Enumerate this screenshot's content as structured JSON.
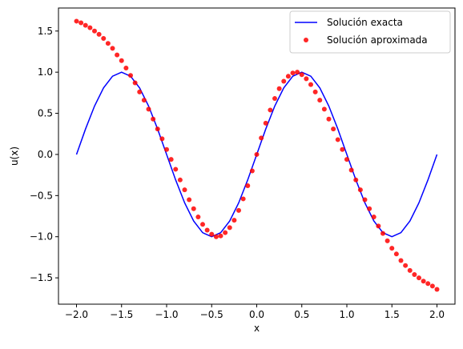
{
  "chart_data": {
    "type": "line",
    "title": "",
    "xlabel": "x",
    "ylabel": "u(x)",
    "xlim": [
      -2.2,
      2.2
    ],
    "ylim": [
      -1.82,
      1.78
    ],
    "xticks": [
      -2.0,
      -1.5,
      -1.0,
      -0.5,
      0.0,
      0.5,
      1.0,
      1.5,
      2.0
    ],
    "xtick_labels": [
      "−2.0",
      "−1.5",
      "−1.0",
      "−0.5",
      "0.0",
      "0.5",
      "1.0",
      "1.5",
      "2.0"
    ],
    "yticks": [
      -1.5,
      -1.0,
      -0.5,
      0.0,
      0.5,
      1.0,
      1.5
    ],
    "ytick_labels": [
      "−1.5",
      "−1.0",
      "−0.5",
      "0.0",
      "0.5",
      "1.0",
      "1.5"
    ],
    "grid": false,
    "legend_position": "top-right",
    "series": [
      {
        "name": "Solución exacta",
        "style": "line",
        "color": "#0000ff",
        "x": [
          -2.0,
          -1.9,
          -1.8,
          -1.7,
          -1.6,
          -1.5,
          -1.4,
          -1.3,
          -1.2,
          -1.1,
          -1.0,
          -0.9,
          -0.8,
          -0.7,
          -0.6,
          -0.5,
          -0.4,
          -0.3,
          -0.2,
          -0.1,
          0.0,
          0.1,
          0.2,
          0.3,
          0.4,
          0.5,
          0.6,
          0.7,
          0.8,
          0.9,
          1.0,
          1.1,
          1.2,
          1.3,
          1.4,
          1.5,
          1.6,
          1.7,
          1.8,
          1.9,
          2.0
        ],
        "y": [
          0.0,
          0.309,
          0.588,
          0.809,
          0.951,
          1.0,
          0.951,
          0.809,
          0.588,
          0.309,
          0.0,
          -0.309,
          -0.588,
          -0.809,
          -0.951,
          -1.0,
          -0.951,
          -0.809,
          -0.588,
          -0.309,
          0.0,
          0.309,
          0.588,
          0.809,
          0.951,
          1.0,
          0.951,
          0.809,
          0.588,
          0.309,
          0.0,
          -0.309,
          -0.588,
          -0.809,
          -0.951,
          -1.0,
          -0.951,
          -0.809,
          -0.588,
          -0.309,
          0.0
        ]
      },
      {
        "name": "Solución aproximada",
        "style": "markers",
        "color": "#ff0000",
        "x": [
          -2.0,
          -1.95,
          -1.9,
          -1.85,
          -1.8,
          -1.75,
          -1.7,
          -1.65,
          -1.6,
          -1.55,
          -1.5,
          -1.45,
          -1.4,
          -1.35,
          -1.3,
          -1.25,
          -1.2,
          -1.15,
          -1.1,
          -1.05,
          -1.0,
          -0.95,
          -0.9,
          -0.85,
          -0.8,
          -0.75,
          -0.7,
          -0.65,
          -0.6,
          -0.55,
          -0.5,
          -0.45,
          -0.4,
          -0.35,
          -0.3,
          -0.25,
          -0.2,
          -0.15,
          -0.1,
          -0.05,
          0.0,
          0.05,
          0.1,
          0.15,
          0.2,
          0.25,
          0.3,
          0.35,
          0.4,
          0.45,
          0.5,
          0.55,
          0.6,
          0.65,
          0.7,
          0.75,
          0.8,
          0.85,
          0.9,
          0.95,
          1.0,
          1.05,
          1.1,
          1.15,
          1.2,
          1.25,
          1.3,
          1.35,
          1.4,
          1.45,
          1.5,
          1.55,
          1.6,
          1.65,
          1.7,
          1.75,
          1.8,
          1.85,
          1.9,
          1.95,
          2.0
        ],
        "y": [
          1.62,
          1.6,
          1.57,
          1.54,
          1.5,
          1.46,
          1.41,
          1.35,
          1.29,
          1.21,
          1.14,
          1.05,
          0.96,
          0.87,
          0.76,
          0.66,
          0.55,
          0.43,
          0.31,
          0.19,
          0.06,
          -0.06,
          -0.18,
          -0.31,
          -0.43,
          -0.55,
          -0.66,
          -0.76,
          -0.85,
          -0.92,
          -0.97,
          -1.0,
          -0.99,
          -0.95,
          -0.89,
          -0.8,
          -0.68,
          -0.54,
          -0.38,
          -0.2,
          0.0,
          0.2,
          0.38,
          0.54,
          0.68,
          0.8,
          0.89,
          0.95,
          0.99,
          1.0,
          0.97,
          0.92,
          0.85,
          0.76,
          0.66,
          0.55,
          0.43,
          0.31,
          0.18,
          0.06,
          -0.06,
          -0.19,
          -0.31,
          -0.43,
          -0.55,
          -0.66,
          -0.76,
          -0.87,
          -0.96,
          -1.05,
          -1.14,
          -1.21,
          -1.29,
          -1.35,
          -1.41,
          -1.46,
          -1.5,
          -1.54,
          -1.57,
          -1.6,
          -1.64
        ]
      }
    ]
  }
}
